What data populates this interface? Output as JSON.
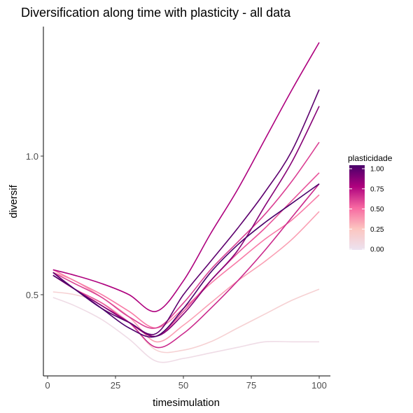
{
  "chart_data": {
    "type": "line",
    "title": "Diversification along time with plasticity - all data",
    "xlabel": "timesimulation",
    "ylabel": "diversif",
    "xlim": [
      0,
      100
    ],
    "ylim": [
      0.22,
      1.64
    ],
    "xticks": [
      0,
      25,
      50,
      75,
      100
    ],
    "yticks": [
      0.5,
      1.0
    ],
    "ytick_labels": [
      "0.5",
      "1.0"
    ],
    "grid": false,
    "legend": {
      "title": "plasticidade",
      "placement": "right",
      "range": [
        0,
        1
      ],
      "ticks": [
        "0.00",
        "0.25",
        "0.50",
        "0.75",
        "1.00"
      ],
      "colors": [
        "#ece2f0",
        "#fcc5c0",
        "#f768a1",
        "#ae017e",
        "#49006a"
      ]
    },
    "series": [
      {
        "plasticity": 0.05,
        "x": [
          2,
          10,
          20,
          30,
          40,
          50,
          60,
          70,
          80,
          90,
          100
        ],
        "y": [
          0.49,
          0.46,
          0.41,
          0.34,
          0.26,
          0.27,
          0.29,
          0.31,
          0.33,
          0.33,
          0.33
        ]
      },
      {
        "plasticity": 0.15,
        "x": [
          2,
          10,
          20,
          30,
          40,
          50,
          60,
          70,
          80,
          90,
          100
        ],
        "y": [
          0.51,
          0.5,
          0.47,
          0.4,
          0.3,
          0.3,
          0.33,
          0.38,
          0.43,
          0.48,
          0.52
        ]
      },
      {
        "plasticity": 0.35,
        "x": [
          2,
          10,
          20,
          30,
          40,
          50,
          60,
          70,
          80,
          90,
          100
        ],
        "y": [
          0.58,
          0.55,
          0.49,
          0.42,
          0.33,
          0.39,
          0.47,
          0.55,
          0.62,
          0.7,
          0.8
        ]
      },
      {
        "plasticity": 0.45,
        "x": [
          2,
          10,
          20,
          30,
          40,
          50,
          60,
          70,
          80,
          90,
          100
        ],
        "y": [
          0.59,
          0.55,
          0.5,
          0.44,
          0.38,
          0.45,
          0.54,
          0.62,
          0.7,
          0.77,
          0.86
        ]
      },
      {
        "plasticity": 0.55,
        "x": [
          2,
          10,
          20,
          30,
          40,
          50,
          60,
          70,
          80,
          90,
          100
        ],
        "y": [
          0.57,
          0.52,
          0.47,
          0.4,
          0.35,
          0.44,
          0.55,
          0.65,
          0.74,
          0.84,
          0.94
        ]
      },
      {
        "plasticity": 0.6,
        "x": [
          2,
          10,
          20,
          30,
          40,
          50,
          60,
          70,
          80,
          90,
          100
        ],
        "y": [
          0.58,
          0.54,
          0.49,
          0.42,
          0.38,
          0.47,
          0.59,
          0.69,
          0.79,
          0.91,
          1.05
        ]
      },
      {
        "plasticity": 0.65,
        "x": [
          2,
          10,
          20,
          30,
          40,
          50,
          60,
          70,
          80,
          90,
          100
        ],
        "y": [
          0.57,
          0.52,
          0.46,
          0.4,
          0.31,
          0.36,
          0.45,
          0.55,
          0.66,
          0.78,
          0.9
        ]
      },
      {
        "plasticity": 0.75,
        "x": [
          2,
          10,
          20,
          30,
          40,
          50,
          60,
          70,
          80,
          90,
          100
        ],
        "y": [
          0.59,
          0.57,
          0.54,
          0.5,
          0.44,
          0.55,
          0.72,
          0.88,
          1.06,
          1.24,
          1.41
        ]
      },
      {
        "plasticity": 0.85,
        "x": [
          2,
          10,
          20,
          30,
          40,
          50,
          60,
          70,
          80,
          90,
          100
        ],
        "y": [
          0.58,
          0.52,
          0.46,
          0.4,
          0.35,
          0.43,
          0.55,
          0.66,
          0.82,
          0.98,
          1.18
        ]
      },
      {
        "plasticity": 0.95,
        "x": [
          2,
          10,
          20,
          30,
          40,
          50,
          60,
          70,
          80,
          90,
          100
        ],
        "y": [
          0.58,
          0.52,
          0.45,
          0.4,
          0.36,
          0.5,
          0.62,
          0.74,
          0.87,
          1.02,
          1.24
        ]
      },
      {
        "plasticity": 1.0,
        "x": [
          2,
          10,
          20,
          30,
          40,
          50,
          60,
          70,
          80,
          90,
          100
        ],
        "y": [
          0.57,
          0.52,
          0.45,
          0.38,
          0.35,
          0.45,
          0.58,
          0.68,
          0.76,
          0.83,
          0.9
        ]
      }
    ]
  }
}
